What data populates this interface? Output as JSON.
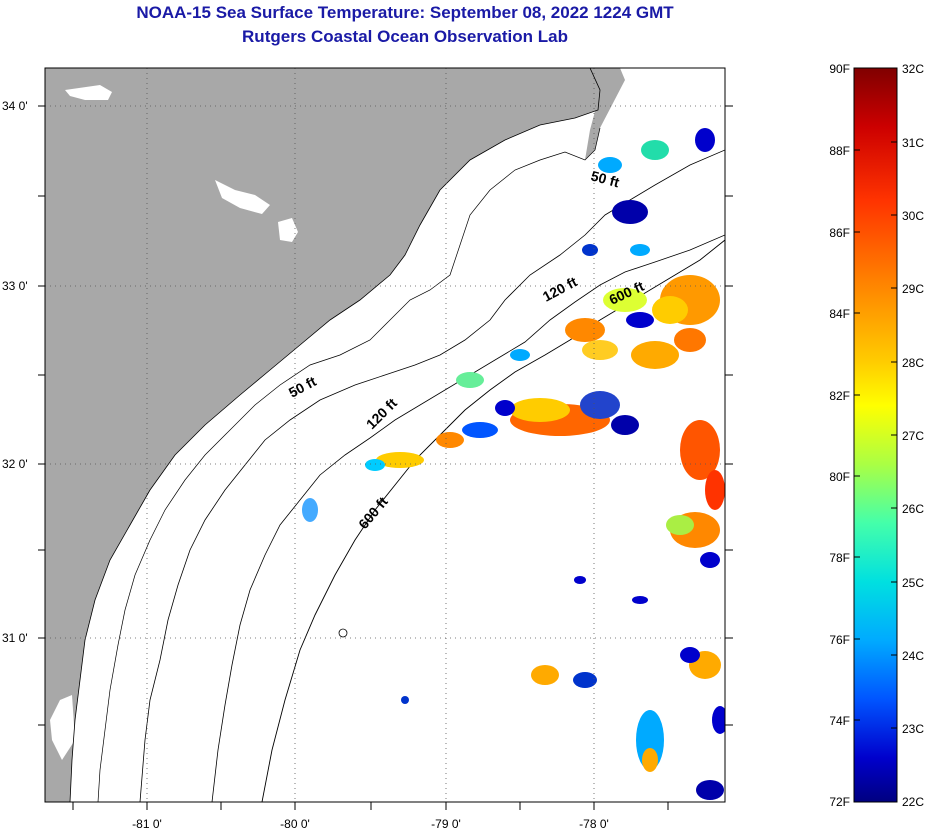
{
  "title": {
    "line1": "NOAA-15 Sea Surface Temperature:  September 08, 2022 1224 GMT",
    "line2": "Rutgers Coastal Ocean Observation Lab"
  },
  "map": {
    "lon_labels": [
      "-81 0'",
      "-80 0'",
      "-79 0'",
      "-78 0'"
    ],
    "lat_labels": [
      "34 0'",
      "33 0'",
      "32 0'",
      "31 0'"
    ],
    "colors": {
      "land": "#a8a8a8",
      "ocean": "#ffffff",
      "grid": "#555555",
      "coast": "#000000"
    },
    "depth_contour_labels": {
      "north_50": "50 ft",
      "north_120": "120 ft",
      "north_600": "600 ft",
      "south_50": "50 ft",
      "south_120": "120 ft",
      "south_600": "600 ft"
    }
  },
  "colorbar": {
    "fahrenheit": [
      "90F",
      "88F",
      "86F",
      "84F",
      "82F",
      "80F",
      "78F",
      "76F",
      "74F",
      "72F"
    ],
    "celsius": [
      "32C",
      "31C",
      "30C",
      "29C",
      "28C",
      "27C",
      "26C",
      "25C",
      "24C",
      "23C",
      "22C"
    ],
    "stops": [
      "#800000",
      "#cc0000",
      "#ff3300",
      "#ff8800",
      "#ffcc00",
      "#ffff00",
      "#aaff44",
      "#44ffaa",
      "#00e0e0",
      "#00aaff",
      "#0055ff",
      "#0000cc",
      "#000080"
    ]
  }
}
